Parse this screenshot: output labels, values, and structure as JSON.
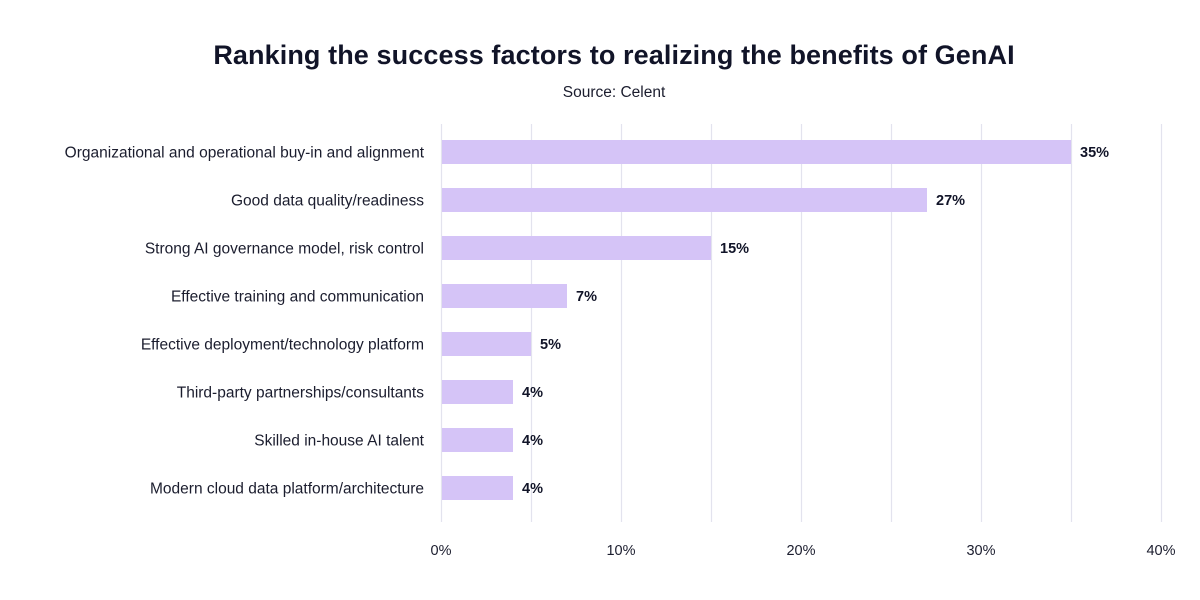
{
  "chart_data": {
    "type": "bar",
    "orientation": "horizontal",
    "title": "Ranking the success factors to realizing the benefits of GenAI",
    "subtitle": "Source: Celent",
    "categories": [
      "Organizational and operational buy-in and alignment",
      "Good data quality/readiness",
      "Strong AI governance model, risk control",
      "Effective training and communication",
      "Effective deployment/technology platform",
      "Third-party partnerships/consultants",
      "Skilled in-house AI talent",
      "Modern cloud data platform/architecture"
    ],
    "values": [
      35,
      27,
      15,
      7,
      5,
      4,
      4,
      4
    ],
    "value_labels": [
      "35%",
      "27%",
      "15%",
      "7%",
      "5%",
      "4%",
      "4%",
      "4%"
    ],
    "xlim": [
      0,
      40
    ],
    "x_ticks": [
      0,
      10,
      20,
      30,
      40
    ],
    "x_tick_labels": [
      "0%",
      "10%",
      "20%",
      "30%",
      "40%"
    ],
    "grid": true,
    "xlabel": "",
    "ylabel": "",
    "bar_color": "#d5c4f7",
    "grid_color": "#e3e3ee"
  }
}
